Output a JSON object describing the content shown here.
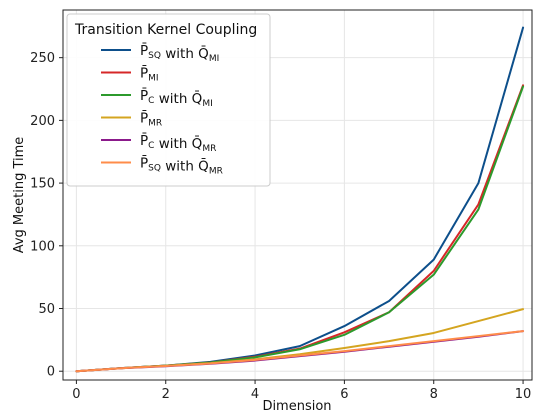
{
  "chart_data": {
    "type": "line",
    "xlabel": "Dimension",
    "ylabel": "Avg Meeting Time",
    "xlim": [
      -0.3,
      10.2
    ],
    "ylim": [
      -7,
      288
    ],
    "xticks": [
      0,
      2,
      4,
      6,
      8,
      10
    ],
    "yticks": [
      0,
      50,
      100,
      150,
      200,
      250
    ],
    "grid": true,
    "legend": {
      "title": "Transition Kernel Coupling",
      "placement": "top-left"
    },
    "x": [
      0,
      1,
      2,
      3,
      4,
      5,
      6,
      7,
      8,
      9,
      10
    ],
    "series": [
      {
        "name": "P̄SQ with Q̄MI",
        "label_parts": [
          [
            "P̄",
            "SQ"
          ],
          [
            " with Q̄",
            "MI"
          ]
        ],
        "color": "#0d4f8b",
        "values": [
          0,
          2.5,
          4.5,
          7.5,
          12.5,
          20,
          36,
          56,
          89,
          150,
          274
        ]
      },
      {
        "name": "P̄MI",
        "label_parts": [
          [
            "P̄",
            "MI"
          ]
        ],
        "color": "#d62728",
        "values": [
          0,
          2.5,
          4.5,
          7,
          11.5,
          18,
          31,
          47,
          80,
          133,
          228
        ]
      },
      {
        "name": "P̄C with Q̄MI",
        "label_parts": [
          [
            "P̄",
            "C"
          ],
          [
            " with Q̄",
            "MI"
          ]
        ],
        "color": "#2c9a2c",
        "values": [
          0,
          2.5,
          4.5,
          7,
          11,
          17.5,
          29,
          47,
          77,
          129,
          227
        ]
      },
      {
        "name": "P̄MR",
        "label_parts": [
          [
            "P̄",
            "MR"
          ]
        ],
        "color": "#d4a520",
        "values": [
          0,
          2.4,
          4.3,
          6.5,
          9.5,
          13.5,
          18.5,
          24,
          30.5,
          40,
          49.5
        ]
      },
      {
        "name": "P̄C with Q̄MR",
        "label_parts": [
          [
            "P̄",
            "C"
          ],
          [
            " with Q̄",
            "MR"
          ]
        ],
        "color": "#8b1a8b",
        "values": [
          0,
          2.4,
          4,
          6,
          8.5,
          12,
          15.5,
          19.5,
          23.5,
          27.5,
          32
        ]
      },
      {
        "name": "P̄SQ with Q̄MR",
        "label_parts": [
          [
            "P̄",
            "SQ"
          ],
          [
            " with Q̄",
            "MR"
          ]
        ],
        "color": "#ff8c4a",
        "values": [
          0,
          2.4,
          4.2,
          6.2,
          9,
          12.5,
          16,
          20,
          24,
          28,
          32
        ]
      }
    ]
  }
}
